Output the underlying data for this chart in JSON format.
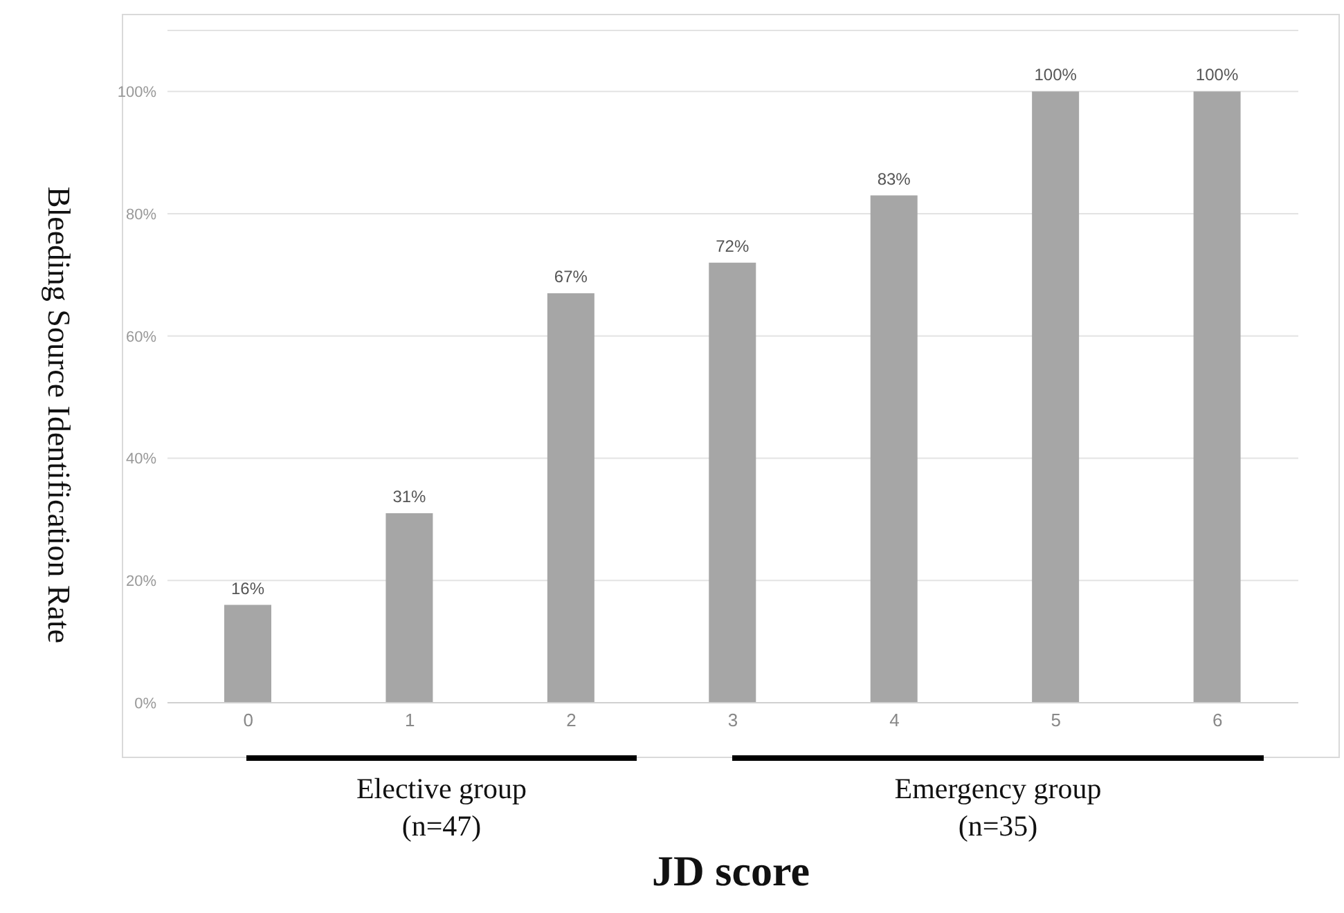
{
  "chart_data": {
    "type": "bar",
    "xlabel": "JD score",
    "ylabel": "Bleeding Source Identification Rate",
    "categories": [
      "0",
      "1",
      "2",
      "3",
      "4",
      "5",
      "6"
    ],
    "values": [
      16,
      31,
      67,
      72,
      83,
      100,
      100
    ],
    "value_labels": [
      "16%",
      "31%",
      "67%",
      "72%",
      "83%",
      "100%",
      "100%"
    ],
    "color": "#a6a6a6",
    "ylim": [
      0,
      110
    ],
    "yticks": [
      {
        "value": 0,
        "label": "0%"
      },
      {
        "value": 20,
        "label": "20%"
      },
      {
        "value": 40,
        "label": "40%"
      },
      {
        "value": 60,
        "label": "60%"
      },
      {
        "value": 80,
        "label": "80%"
      },
      {
        "value": 100,
        "label": "100%"
      }
    ],
    "grid": "y",
    "annotations": [
      "Elective group\n(n=47)",
      "Emergency group\n(n=35)"
    ]
  }
}
